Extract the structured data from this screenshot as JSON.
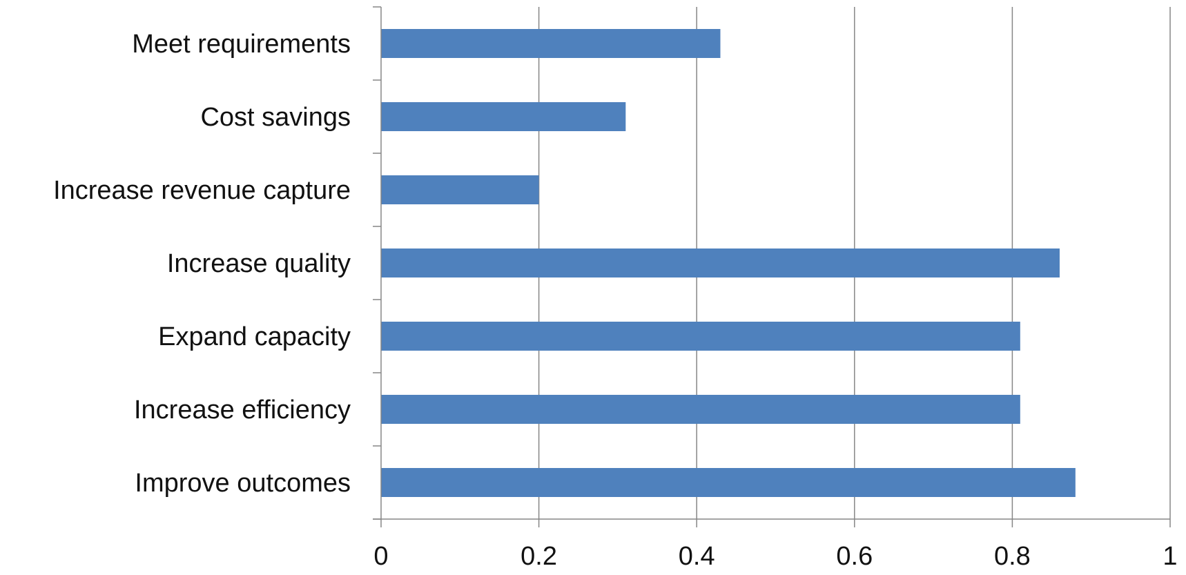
{
  "chart_data": {
    "type": "bar",
    "orientation": "horizontal",
    "categories": [
      "Improve outcomes",
      "Increase efficiency",
      "Expand capacity",
      "Increase quality",
      "Increase revenue capture",
      "Cost savings",
      "Meet requirements"
    ],
    "values": [
      0.88,
      0.81,
      0.81,
      0.86,
      0.2,
      0.31,
      0.43
    ],
    "xlim": [
      0,
      1
    ],
    "xticks": [
      "0",
      "0.2",
      "0.4",
      "0.6",
      "0.8",
      "1"
    ],
    "title": "",
    "xlabel": "",
    "ylabel": "",
    "grid": true,
    "grid_axis": "x",
    "legend": "none",
    "colors": {
      "bar": "#4f81bd",
      "grid": "#868686",
      "axis": "#868686",
      "text": "#111111"
    }
  }
}
